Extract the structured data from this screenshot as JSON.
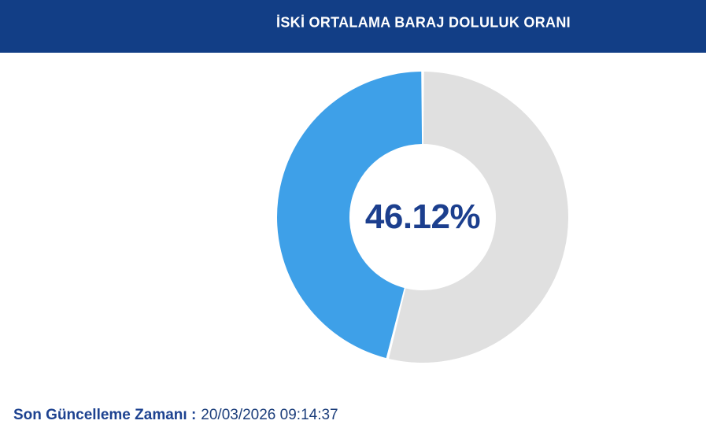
{
  "header": {
    "title": "İSKİ ORTALAMA BARAJ DOLULUK ORANI",
    "bg_color": "#123E86",
    "text_color": "#FFFFFF"
  },
  "chart_data": {
    "type": "pie",
    "subtype": "donut",
    "title": "İSKİ ORTALAMA BARAJ DOLULUK ORANI",
    "center_label": "46.12%",
    "center_label_color": "#1C3F8E",
    "segments": [
      {
        "name": "doluluk-orani",
        "value": 46.12,
        "color": "#3EA0E8"
      },
      {
        "name": "kalan",
        "value": 53.88,
        "color": "#E0E0E0"
      }
    ],
    "start_angle_deg": 0,
    "fill_direction": "counterclockwise",
    "inner_radius_ratio": 0.5,
    "pad_angle_deg": 0.55,
    "legend": "none",
    "grid": false
  },
  "footer": {
    "label": "Son Güncelleme Zamanı :",
    "value": "20/03/2026 09:14:37"
  }
}
